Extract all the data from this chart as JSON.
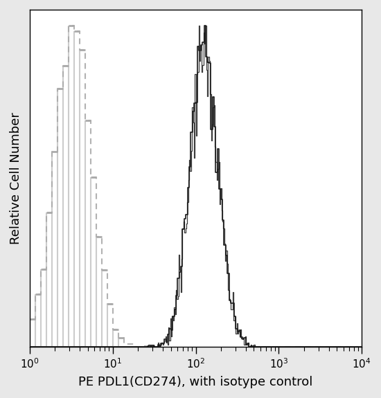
{
  "title": "",
  "xlabel": "PE PDL1(CD274), with isotype control",
  "ylabel": "Relative Cell Number",
  "xlim": [
    1,
    10000
  ],
  "ylim": [
    0,
    1.05
  ],
  "background_color": "#e8e8e8",
  "plot_bg_color": "#ffffff",
  "isotype_color": "#aaaaaa",
  "pdl1_color": "#1a1a1a",
  "isotype_mean_log": 0.52,
  "isotype_std_log": 0.22,
  "pdl1_mean_log": 2.1,
  "pdl1_std_log": 0.17,
  "n_bins_iso": 60,
  "n_bins_pdl1": 200,
  "xlabel_fontsize": 13,
  "ylabel_fontsize": 13,
  "tick_fontsize": 11
}
